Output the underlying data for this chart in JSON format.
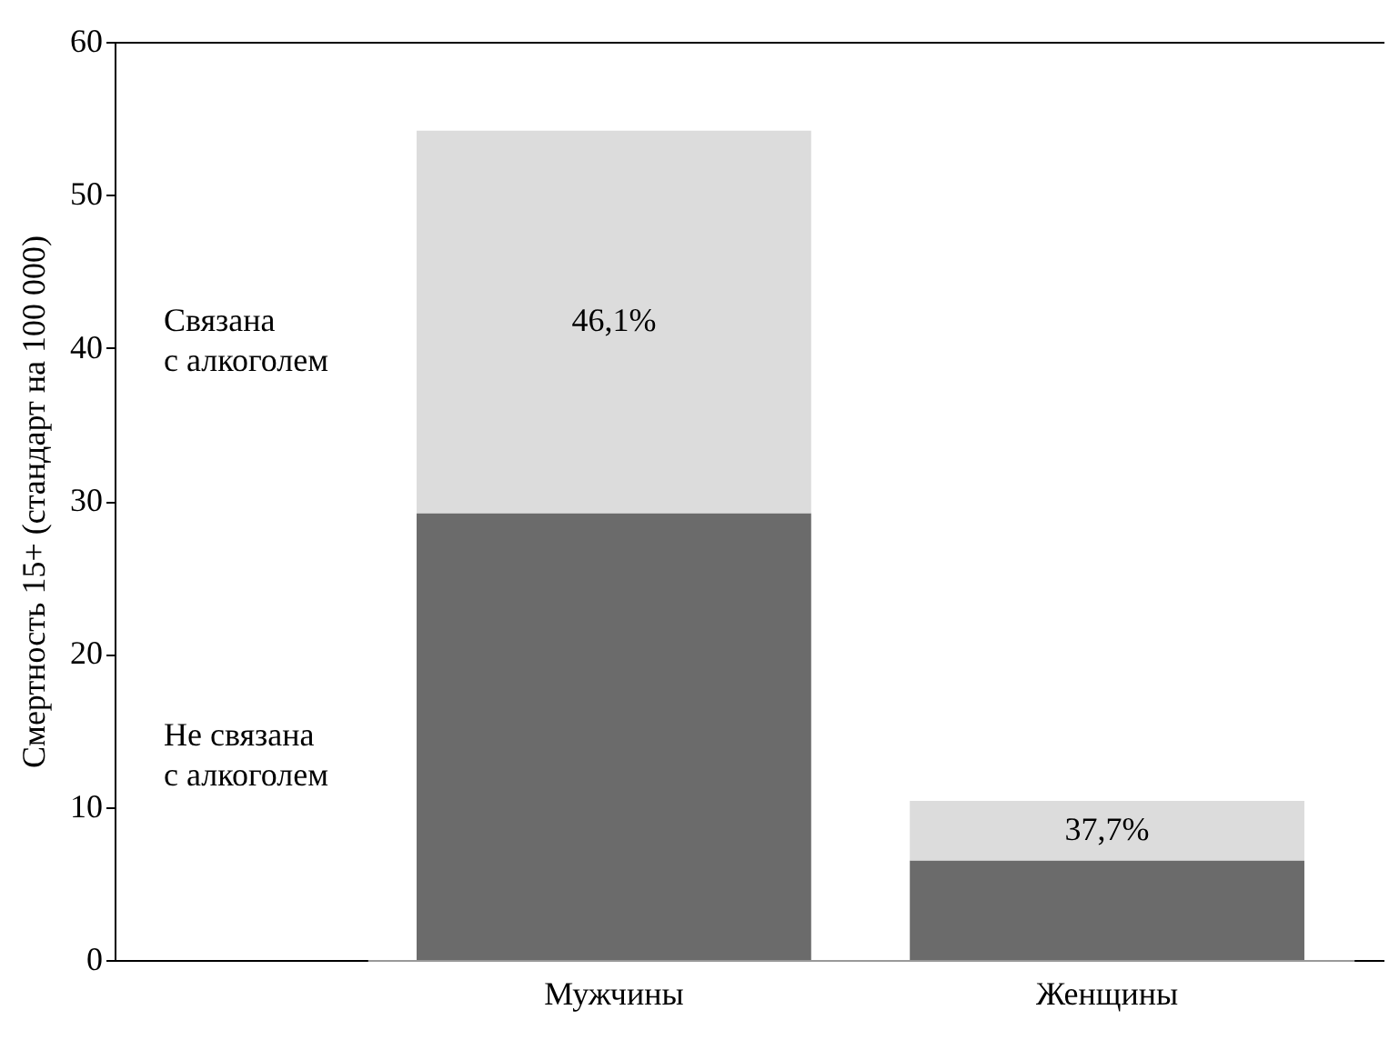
{
  "chart_data": {
    "type": "bar",
    "ylabel": "Смертность 15+ (стандарт на 100 000)",
    "categories": [
      "Мужчины",
      "Женщины"
    ],
    "stacked": true,
    "series": [
      {
        "name": "Не связана с алкоголем",
        "color": "#6b6b6b",
        "values": [
          29.2,
          6.5
        ]
      },
      {
        "name": "Связана с алкоголем",
        "color": "#dcdcdc",
        "values": [
          25.0,
          3.9
        ]
      }
    ],
    "ylim": [
      0,
      60
    ],
    "yticks": [
      0,
      10,
      20,
      30,
      40,
      50,
      60
    ],
    "annotations": [
      "46,1%",
      "37,7%"
    ]
  }
}
